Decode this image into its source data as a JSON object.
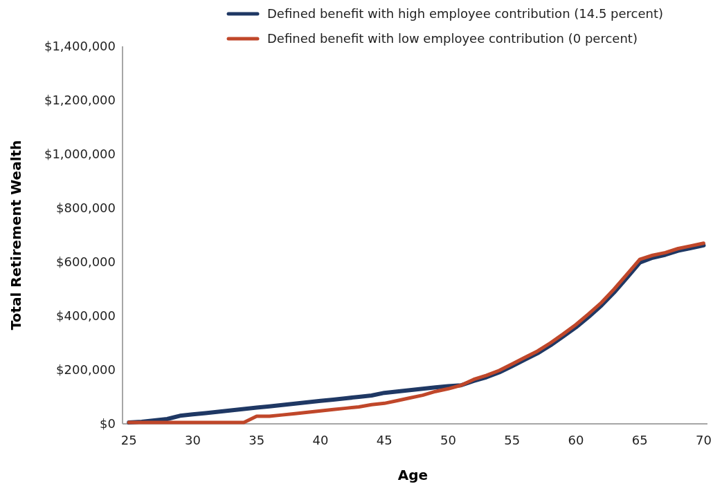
{
  "chart_data": {
    "type": "line",
    "xlabel": "Age",
    "ylabel": "Total Retirement Wealth",
    "x": [
      25,
      26,
      27,
      28,
      29,
      30,
      31,
      32,
      33,
      34,
      35,
      36,
      37,
      38,
      39,
      40,
      41,
      42,
      43,
      44,
      45,
      46,
      47,
      48,
      49,
      50,
      51,
      52,
      53,
      54,
      55,
      56,
      57,
      58,
      59,
      60,
      61,
      62,
      63,
      64,
      65,
      66,
      67,
      68,
      69,
      70
    ],
    "series": [
      {
        "name": "Defined benefit with high employee contribution (14.5 percent)",
        "color": "#1f3864",
        "values": [
          5000,
          8000,
          13000,
          18000,
          30000,
          35000,
          40000,
          45000,
          50000,
          55000,
          60000,
          65000,
          70000,
          75000,
          80000,
          85000,
          90000,
          95000,
          100000,
          105000,
          115000,
          120000,
          125000,
          130000,
          135000,
          140000,
          143000,
          159000,
          173000,
          191000,
          214000,
          238000,
          262000,
          291000,
          324000,
          358000,
          397000,
          439000,
          488000,
          542000,
          598000,
          616000,
          627000,
          642000,
          652000,
          662000
        ]
      },
      {
        "name": "Defined benefit with low employee contribution (0 percent)",
        "color": "#c0472a",
        "values": [
          5000,
          5000,
          5000,
          5000,
          5000,
          5000,
          5000,
          5000,
          5000,
          5000,
          28000,
          28000,
          33000,
          38000,
          43000,
          48000,
          53000,
          58000,
          63000,
          71000,
          76000,
          86000,
          96000,
          106000,
          120000,
          130000,
          143000,
          165000,
          180000,
          198000,
          222000,
          246000,
          270000,
          300000,
          333000,
          368000,
          408000,
          450000,
          500000,
          555000,
          610000,
          625000,
          635000,
          650000,
          660000,
          670000
        ]
      }
    ],
    "xlim": [
      24.5,
      70.3
    ],
    "xticks": [
      25,
      30,
      35,
      40,
      45,
      50,
      55,
      60,
      65,
      70
    ],
    "ylim": [
      0,
      1400000
    ],
    "yticks": [
      {
        "value": 0,
        "label": "$0"
      },
      {
        "value": 200000,
        "label": "$200,000"
      },
      {
        "value": 400000,
        "label": "$400,000"
      },
      {
        "value": 600000,
        "label": "$600,000"
      },
      {
        "value": 800000,
        "label": "$800,000"
      },
      {
        "value": 1000000,
        "label": "$1,000,000"
      },
      {
        "value": 1200000,
        "label": "$1,200,000"
      },
      {
        "value": 1400000,
        "label": "$1,400,000"
      }
    ],
    "grid": false,
    "legend": "top right",
    "marker": "none",
    "line_style": "solid"
  }
}
